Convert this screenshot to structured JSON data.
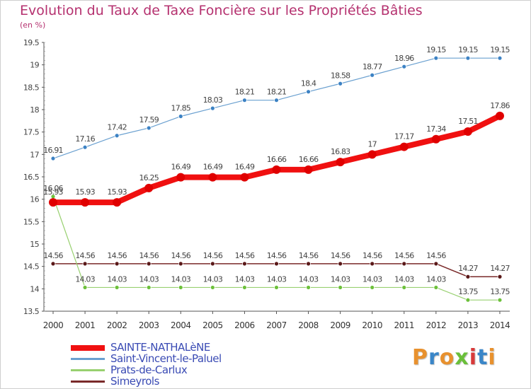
{
  "title": "Evolution du Taux de Taxe Foncière sur les Propriétés Bâties",
  "unit_label": "(en %)",
  "logo": {
    "letters": [
      "P",
      "r",
      "o",
      "x",
      "i",
      "t",
      "i"
    ],
    "colors": [
      "#e8912e",
      "#3a86c8",
      "#e8912e",
      "#6abf3a",
      "#d83a3a",
      "#3a86c8",
      "#e8912e"
    ]
  },
  "chart_data": {
    "type": "line",
    "x": [
      "2000",
      "2001",
      "2002",
      "2003",
      "2004",
      "2005",
      "2006",
      "2007",
      "2008",
      "2009",
      "2010",
      "2011",
      "2012",
      "2013",
      "2014"
    ],
    "ylim": [
      13.5,
      19.5
    ],
    "yticks": [
      "13.5",
      "14",
      "14.5",
      "15",
      "15.5",
      "16",
      "16.5",
      "17",
      "17.5",
      "18",
      "18.5",
      "19",
      "19.5"
    ],
    "grid": false,
    "legend_position": "bottom-left",
    "series": [
      {
        "name": "Saint-Vincent-le-Paluel",
        "color": "#6aa0d0",
        "marker": "#3c82c4",
        "width": 1.2,
        "r": 3,
        "values": [
          16.91,
          17.16,
          17.42,
          17.59,
          17.85,
          18.03,
          18.21,
          18.21,
          18.4,
          18.58,
          18.77,
          18.96,
          19.15,
          19.15,
          19.15
        ],
        "labels": [
          "16.91",
          "17.16",
          "17.42",
          "17.59",
          "17.85",
          "18.03",
          "18.21",
          "18.21",
          "18.4",
          "18.58",
          "18.77",
          "18.96",
          "19.15",
          "19.15",
          "19.15"
        ]
      },
      {
        "name": "Simeyrols",
        "color": "#7a2a2a",
        "marker": "#5a1818",
        "width": 1.5,
        "r": 3,
        "values": [
          14.56,
          14.56,
          14.56,
          14.56,
          14.56,
          14.56,
          14.56,
          14.56,
          14.56,
          14.56,
          14.56,
          14.56,
          14.56,
          14.27,
          14.27
        ],
        "labels": [
          "14.56",
          "14.56",
          "14.56",
          "14.56",
          "14.56",
          "14.56",
          "14.56",
          "14.56",
          "14.56",
          "14.56",
          "14.56",
          "14.56",
          "14.56",
          "14.27",
          "14.27"
        ]
      },
      {
        "name": "Prats-de-Carlux",
        "color": "#98d070",
        "marker": "#6cc03a",
        "width": 1.2,
        "r": 3,
        "values": [
          16.06,
          14.03,
          14.03,
          14.03,
          14.03,
          14.03,
          14.03,
          14.03,
          14.03,
          14.03,
          14.03,
          14.03,
          14.03,
          13.75,
          13.75
        ],
        "labels": [
          "16.06",
          "14.03",
          "14.03",
          "14.03",
          "14.03",
          "14.03",
          "14.03",
          "14.03",
          "14.03",
          "14.03",
          "14.03",
          "14.03",
          "14.03",
          "13.75",
          "13.75"
        ]
      },
      {
        "name": "SAINTE-NATHALèNE",
        "color": "#f01010",
        "marker": "#e00000",
        "width": 8,
        "r": 6,
        "values": [
          15.93,
          15.93,
          15.93,
          16.25,
          16.49,
          16.49,
          16.49,
          16.66,
          16.66,
          16.83,
          17,
          17.17,
          17.34,
          17.51,
          17.86
        ],
        "labels": [
          "15.93",
          "15.93",
          "15.93",
          "16.25",
          "16.49",
          "16.49",
          "16.49",
          "16.66",
          "16.66",
          "16.83",
          "17",
          "17.17",
          "17.34",
          "17.51",
          "17.86"
        ]
      }
    ],
    "legend_order": [
      "SAINTE-NATHALèNE",
      "Saint-Vincent-le-Paluel",
      "Prats-de-Carlux",
      "Simeyrols"
    ]
  }
}
